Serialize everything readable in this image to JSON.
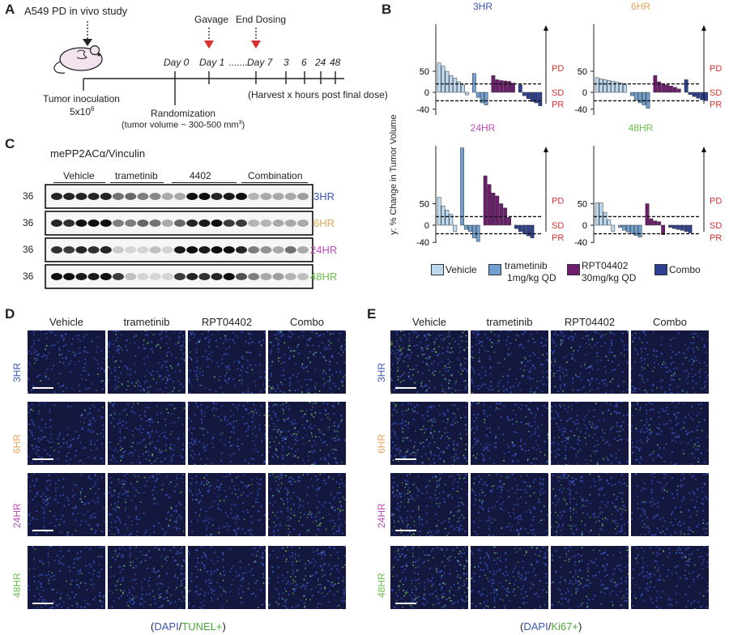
{
  "panels": {
    "a": "A",
    "b": "B",
    "c": "C",
    "d": "D",
    "e": "E"
  },
  "panelA": {
    "title": "A549 PD in vivo study",
    "gavage": "Gavage",
    "end_dosing": "End Dosing",
    "day0": "Day 0",
    "day1": "Day 1",
    "dots": "........",
    "day7": "Day 7",
    "hours": [
      "3",
      "6",
      "24",
      "48"
    ],
    "inoculation": "Tumor inoculation",
    "cells": "5x10",
    "cells_exp": "6",
    "randomization": "Randomization",
    "tumor_volume": "(tumor volume ~ 300-500 mm",
    "tumor_volume_exp": "3",
    "tumor_volume_end": ")",
    "harvest": "(Harvest x hours post final dose)"
  },
  "panelB": {
    "ylabel": "y: % Change in Tumor Volume",
    "pd": "PD",
    "sd": "SD",
    "pr": "PR",
    "colors": {
      "vehicle": "#bcd9f0",
      "trametinib": "#6f9fd0",
      "rpt": "#6d1c6e",
      "combo": "#2d3f91",
      "red": "#d9312f"
    },
    "legend": {
      "vehicle": "Vehicle",
      "trametinib": "trametinib",
      "trametinib_dose": "1mg/kg QD",
      "rpt": "RPT04402",
      "rpt_dose": "30mg/kg QD",
      "combo": "Combo"
    }
  },
  "chart_data": [
    {
      "type": "bar",
      "title": "3HR",
      "title_color": "#3b55b5",
      "yticks": [
        0,
        50
      ],
      "ylim": [
        -45,
        90
      ],
      "thresholds": [
        20,
        -20
      ],
      "series": [
        {
          "name": "Vehicle",
          "values": [
            70,
            62,
            50,
            40,
            34,
            25,
            18,
            -6
          ]
        },
        {
          "name": "trametinib",
          "values": [
            45,
            -12,
            -25,
            -30
          ]
        },
        {
          "name": "RPT04402",
          "values": [
            40,
            30,
            28,
            27,
            26,
            22
          ]
        },
        {
          "name": "Combo",
          "values": [
            18,
            -8,
            -15,
            -22,
            -25,
            -32
          ]
        }
      ]
    },
    {
      "type": "bar",
      "title": "6HR",
      "title_color": "#e6a35a",
      "yticks": [
        0,
        50
      ],
      "ylim": [
        -45,
        90
      ],
      "thresholds": [
        20,
        -20
      ],
      "series": [
        {
          "name": "Vehicle",
          "values": [
            35,
            32,
            30,
            28,
            26,
            24,
            22,
            18
          ]
        },
        {
          "name": "trametinib",
          "values": [
            -8,
            -18,
            -25,
            -30,
            -38
          ]
        },
        {
          "name": "RPT04402",
          "values": [
            40,
            25,
            20,
            18,
            15,
            12,
            8
          ]
        },
        {
          "name": "Combo",
          "values": [
            30,
            -5,
            -10,
            -14,
            -18,
            -20
          ]
        }
      ]
    },
    {
      "type": "bar",
      "title": "24HR",
      "title_color": "#c04bb8",
      "yticks": [
        0,
        50
      ],
      "ylim": [
        -45,
        190
      ],
      "thresholds": [
        20,
        -20
      ],
      "series": [
        {
          "name": "Vehicle",
          "values": [
            65,
            45,
            35,
            25,
            -15
          ]
        },
        {
          "name": "trametinib",
          "values": [
            180,
            -10,
            -15,
            -30,
            -38
          ]
        },
        {
          "name": "RPT04402",
          "values": [
            115,
            95,
            75,
            68,
            50,
            40,
            18
          ]
        },
        {
          "name": "Combo",
          "values": [
            -8,
            -15,
            -20,
            -25,
            -30
          ]
        }
      ]
    },
    {
      "type": "bar",
      "title": "48HR",
      "title_color": "#6cc04a",
      "yticks": [
        0,
        50
      ],
      "ylim": [
        -45,
        90
      ],
      "thresholds": [
        20,
        -20
      ],
      "series": [
        {
          "name": "Vehicle",
          "values": [
            52,
            52,
            30,
            12,
            -15
          ]
        },
        {
          "name": "trametinib",
          "values": [
            -5,
            -12,
            -16,
            -20,
            -24,
            -28
          ]
        },
        {
          "name": "RPT04402",
          "values": [
            50,
            15,
            10,
            8,
            -22
          ]
        },
        {
          "name": "Combo",
          "values": [
            -5,
            -8,
            -10,
            -12,
            -15,
            -18
          ]
        }
      ]
    }
  ],
  "panelC": {
    "title": "mePP2ACα/Vinculin",
    "groups": [
      "Vehicle",
      "trametinib",
      "4402",
      "Combination"
    ],
    "marker": "36",
    "rows": [
      {
        "label": "3HR",
        "color": "#3b55b5"
      },
      {
        "label": "6HR",
        "color": "#e6a35a"
      },
      {
        "label": "24HR",
        "color": "#c04bb8"
      },
      {
        "label": "48HR",
        "color": "#6cc04a"
      }
    ]
  },
  "panelD": {
    "cols": [
      "Vehicle",
      "trametinib",
      "RPT04402",
      "Combo"
    ],
    "rows": [
      {
        "label": "3HR",
        "color": "#3b55b5"
      },
      {
        "label": "6HR",
        "color": "#e6a35a"
      },
      {
        "label": "24HR",
        "color": "#c04bb8"
      },
      {
        "label": "48HR",
        "color": "#6cc04a"
      }
    ],
    "caption_open": "(",
    "caption_dapi": "DAPI",
    "caption_slash": "/",
    "caption_marker": "TUNEL+",
    "caption_close": ")"
  },
  "panelE": {
    "cols": [
      "Vehicle",
      "trametinib",
      "RPT04402",
      "Combo"
    ],
    "rows": [
      {
        "label": "3HR",
        "color": "#3b55b5"
      },
      {
        "label": "6HR",
        "color": "#e6a35a"
      },
      {
        "label": "24HR",
        "color": "#c04bb8"
      },
      {
        "label": "48HR",
        "color": "#6cc04a"
      }
    ],
    "caption_open": "(",
    "caption_dapi": "DAPI",
    "caption_slash": "/",
    "caption_marker": "Ki67+",
    "caption_close": ")"
  }
}
